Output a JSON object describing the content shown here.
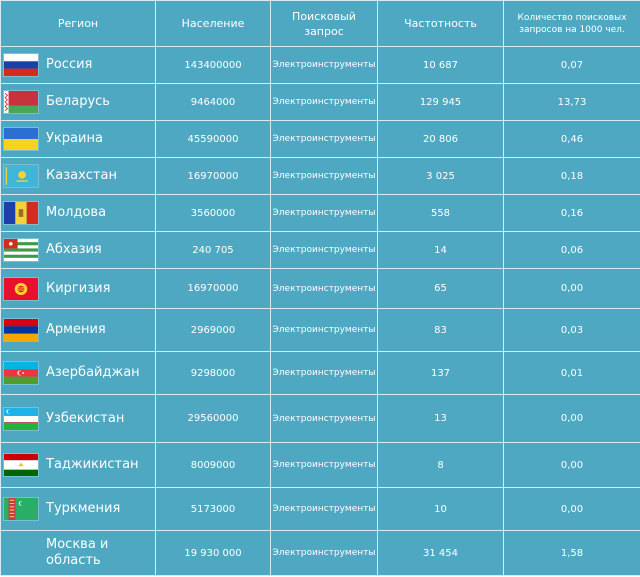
{
  "headers": {
    "region": "Регион",
    "population": "Население",
    "query_line1": "Поисковый",
    "query_line2": "запрос",
    "frequency": "Частотность",
    "per1000_line1": "Количество поисковых",
    "per1000_line2": "запросов на 1000 чел."
  },
  "rows": [
    {
      "region": "Россия",
      "population": "143400000",
      "query": "Электроинструменты",
      "frequency": "10 687",
      "per1000": "0,07",
      "flag_icon": "russia-flag-icon"
    },
    {
      "region": "Беларусь",
      "population": "9464000",
      "query": "Электроинструменты",
      "frequency": "129 945",
      "per1000": "13,73",
      "flag_icon": "belarus-flag-icon"
    },
    {
      "region": "Украина",
      "population": "45590000",
      "query": "Электроинструменты",
      "frequency": "20 806",
      "per1000": "0,46",
      "flag_icon": "ukraine-flag-icon"
    },
    {
      "region": "Казахстан",
      "population": "16970000",
      "query": "Электроинструменты",
      "frequency": "3 025",
      "per1000": "0,18",
      "flag_icon": "kazakhstan-flag-icon"
    },
    {
      "region": "Молдова",
      "population": "3560000",
      "query": "Электроинструменты",
      "frequency": "558",
      "per1000": "0,16",
      "flag_icon": "moldova-flag-icon"
    },
    {
      "region": "Абхазия",
      "population": "240 705",
      "query": "Электроинструменты",
      "frequency": "14",
      "per1000": "0,06",
      "flag_icon": "abkhazia-flag-icon"
    },
    {
      "region": "Киргизия",
      "population": "16970000",
      "query": "Электроинструменты",
      "frequency": "65",
      "per1000": "0,00",
      "flag_icon": "kyrgyzstan-flag-icon"
    },
    {
      "region": "Армения",
      "population": "2969000",
      "query": "Электроинструменты",
      "frequency": "83",
      "per1000": "0,03",
      "flag_icon": "armenia-flag-icon"
    },
    {
      "region": "Азербайджан",
      "population": "9298000",
      "query": "Электроинструменты",
      "frequency": "137",
      "per1000": "0,01",
      "flag_icon": "azerbaijan-flag-icon"
    },
    {
      "region": "Узбекистан",
      "population": "29560000",
      "query": "Электроинструменты",
      "frequency": "13",
      "per1000": "0,00",
      "flag_icon": "uzbekistan-flag-icon"
    },
    {
      "region": "Таджикистан",
      "population": "8009000",
      "query": "Электроинструменты",
      "frequency": "8",
      "per1000": "0,00",
      "flag_icon": "tajikistan-flag-icon"
    },
    {
      "region": "Туркмения",
      "population": "5173000",
      "query": "Электроинструменты",
      "frequency": "10",
      "per1000": "0,00",
      "flag_icon": "turkmenistan-flag-icon"
    }
  ],
  "last_row": {
    "region_line1": "Москва и",
    "region_line2": "область",
    "population": "19 930 000",
    "query": "Электроинструменты",
    "frequency": "31 454",
    "per1000": "1,58"
  },
  "colors": {
    "table_background": "#4fa8c2",
    "grid_line": "#d6eaf1",
    "text": "#ffffff"
  }
}
